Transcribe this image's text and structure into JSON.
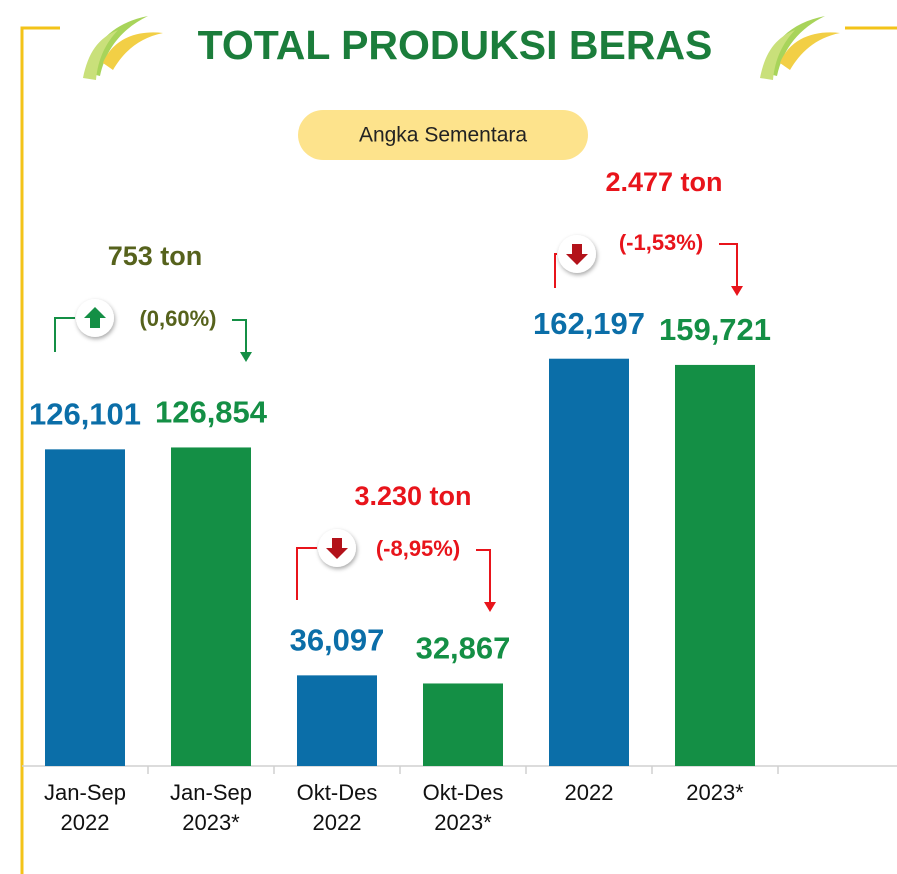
{
  "chart_data": {
    "type": "bar",
    "title": "TOTAL PRODUKSI BERAS",
    "subtitle": "Angka Sementara",
    "categories": [
      "Jan-Sep 2022",
      "Jan-Sep 2023*",
      "Okt-Des 2022",
      "Okt-Des 2023*",
      "2022",
      "2023*"
    ],
    "values": [
      126101,
      126854,
      36097,
      32867,
      162197,
      159721
    ],
    "value_labels": [
      "126,101",
      "126,854",
      "36,097",
      "32,867",
      "162,197",
      "159,721"
    ],
    "colors": [
      "#0b6ea8",
      "#148f45",
      "#0b6ea8",
      "#148f45",
      "#0b6ea8",
      "#148f45"
    ],
    "ylim": [
      0,
      180000
    ],
    "annotations": [
      {
        "amount": "753  ton",
        "percent": "(0,60%)",
        "direction": "up",
        "color": "#56621c",
        "arrow_color": "#148f45"
      },
      {
        "amount": "3.230 ton",
        "percent": "(-8,95%)",
        "direction": "down",
        "color": "#e8141b",
        "arrow_color": "#e8141b"
      },
      {
        "amount": "2.477 ton",
        "percent": "(-1,53%)",
        "direction": "down",
        "color": "#e8141b",
        "arrow_color": "#e8141b"
      }
    ]
  }
}
